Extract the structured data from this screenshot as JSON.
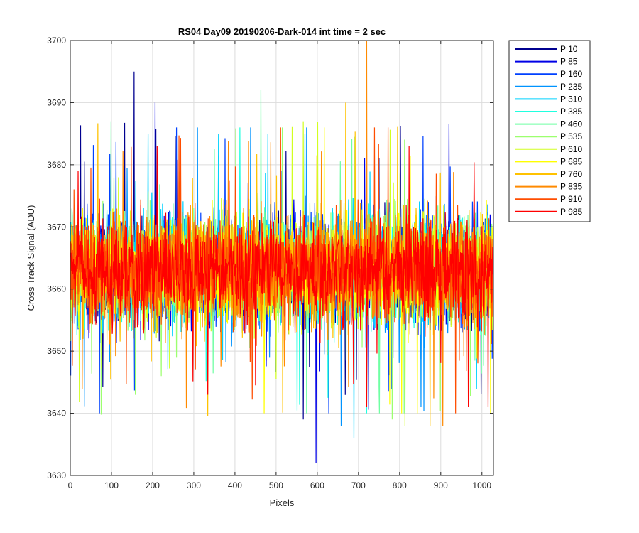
{
  "chart_data": {
    "type": "line",
    "title": "RS04 Day09 20190206-Dark-014 int time = 2 sec",
    "xlabel": "Pixels",
    "ylabel": "Cross Track Signal (ADU)",
    "xlim": [
      0,
      1028
    ],
    "ylim": [
      3630,
      3700
    ],
    "xticks": [
      0,
      100,
      200,
      300,
      400,
      500,
      600,
      700,
      800,
      900,
      1000
    ],
    "yticks": [
      3630,
      3640,
      3650,
      3660,
      3670,
      3680,
      3690,
      3700
    ],
    "grid": true,
    "legend_position": "outside-top-right",
    "n_pixels": 1028,
    "series_mean": 3663,
    "series_spread": 8,
    "series": [
      {
        "name": "P 10",
        "color": "#00008f",
        "mean": 3663,
        "min": 3639,
        "max": 3695
      },
      {
        "name": "P 85",
        "color": "#0000e6",
        "mean": 3663,
        "min": 3632,
        "max": 3690
      },
      {
        "name": "P 160",
        "color": "#0041ff",
        "mean": 3663,
        "min": 3640,
        "max": 3686
      },
      {
        "name": "P 235",
        "color": "#0094ff",
        "mean": 3663,
        "min": 3638,
        "max": 3686
      },
      {
        "name": "P 310",
        "color": "#00d2ff",
        "mean": 3663,
        "min": 3636,
        "max": 3685
      },
      {
        "name": "P 385",
        "color": "#20ffdf",
        "mean": 3663,
        "min": 3640,
        "max": 3686
      },
      {
        "name": "P 460",
        "color": "#6fffa3",
        "mean": 3663,
        "min": 3640,
        "max": 3692
      },
      {
        "name": "P 535",
        "color": "#9cff6f",
        "mean": 3663,
        "min": 3639,
        "max": 3686
      },
      {
        "name": "P 610",
        "color": "#d2ff20",
        "mean": 3663,
        "min": 3638,
        "max": 3687
      },
      {
        "name": "P 685",
        "color": "#ffff00",
        "mean": 3663,
        "min": 3640,
        "max": 3686
      },
      {
        "name": "P 760",
        "color": "#ffc200",
        "mean": 3663,
        "min": 3638,
        "max": 3690
      },
      {
        "name": "P 835",
        "color": "#ff8a00",
        "mean": 3663,
        "min": 3638,
        "max": 3700
      },
      {
        "name": "P 910",
        "color": "#ff4d00",
        "mean": 3663,
        "min": 3640,
        "max": 3686
      },
      {
        "name": "P 985",
        "color": "#ff0000",
        "mean": 3663,
        "min": 3641,
        "max": 3683
      }
    ]
  }
}
